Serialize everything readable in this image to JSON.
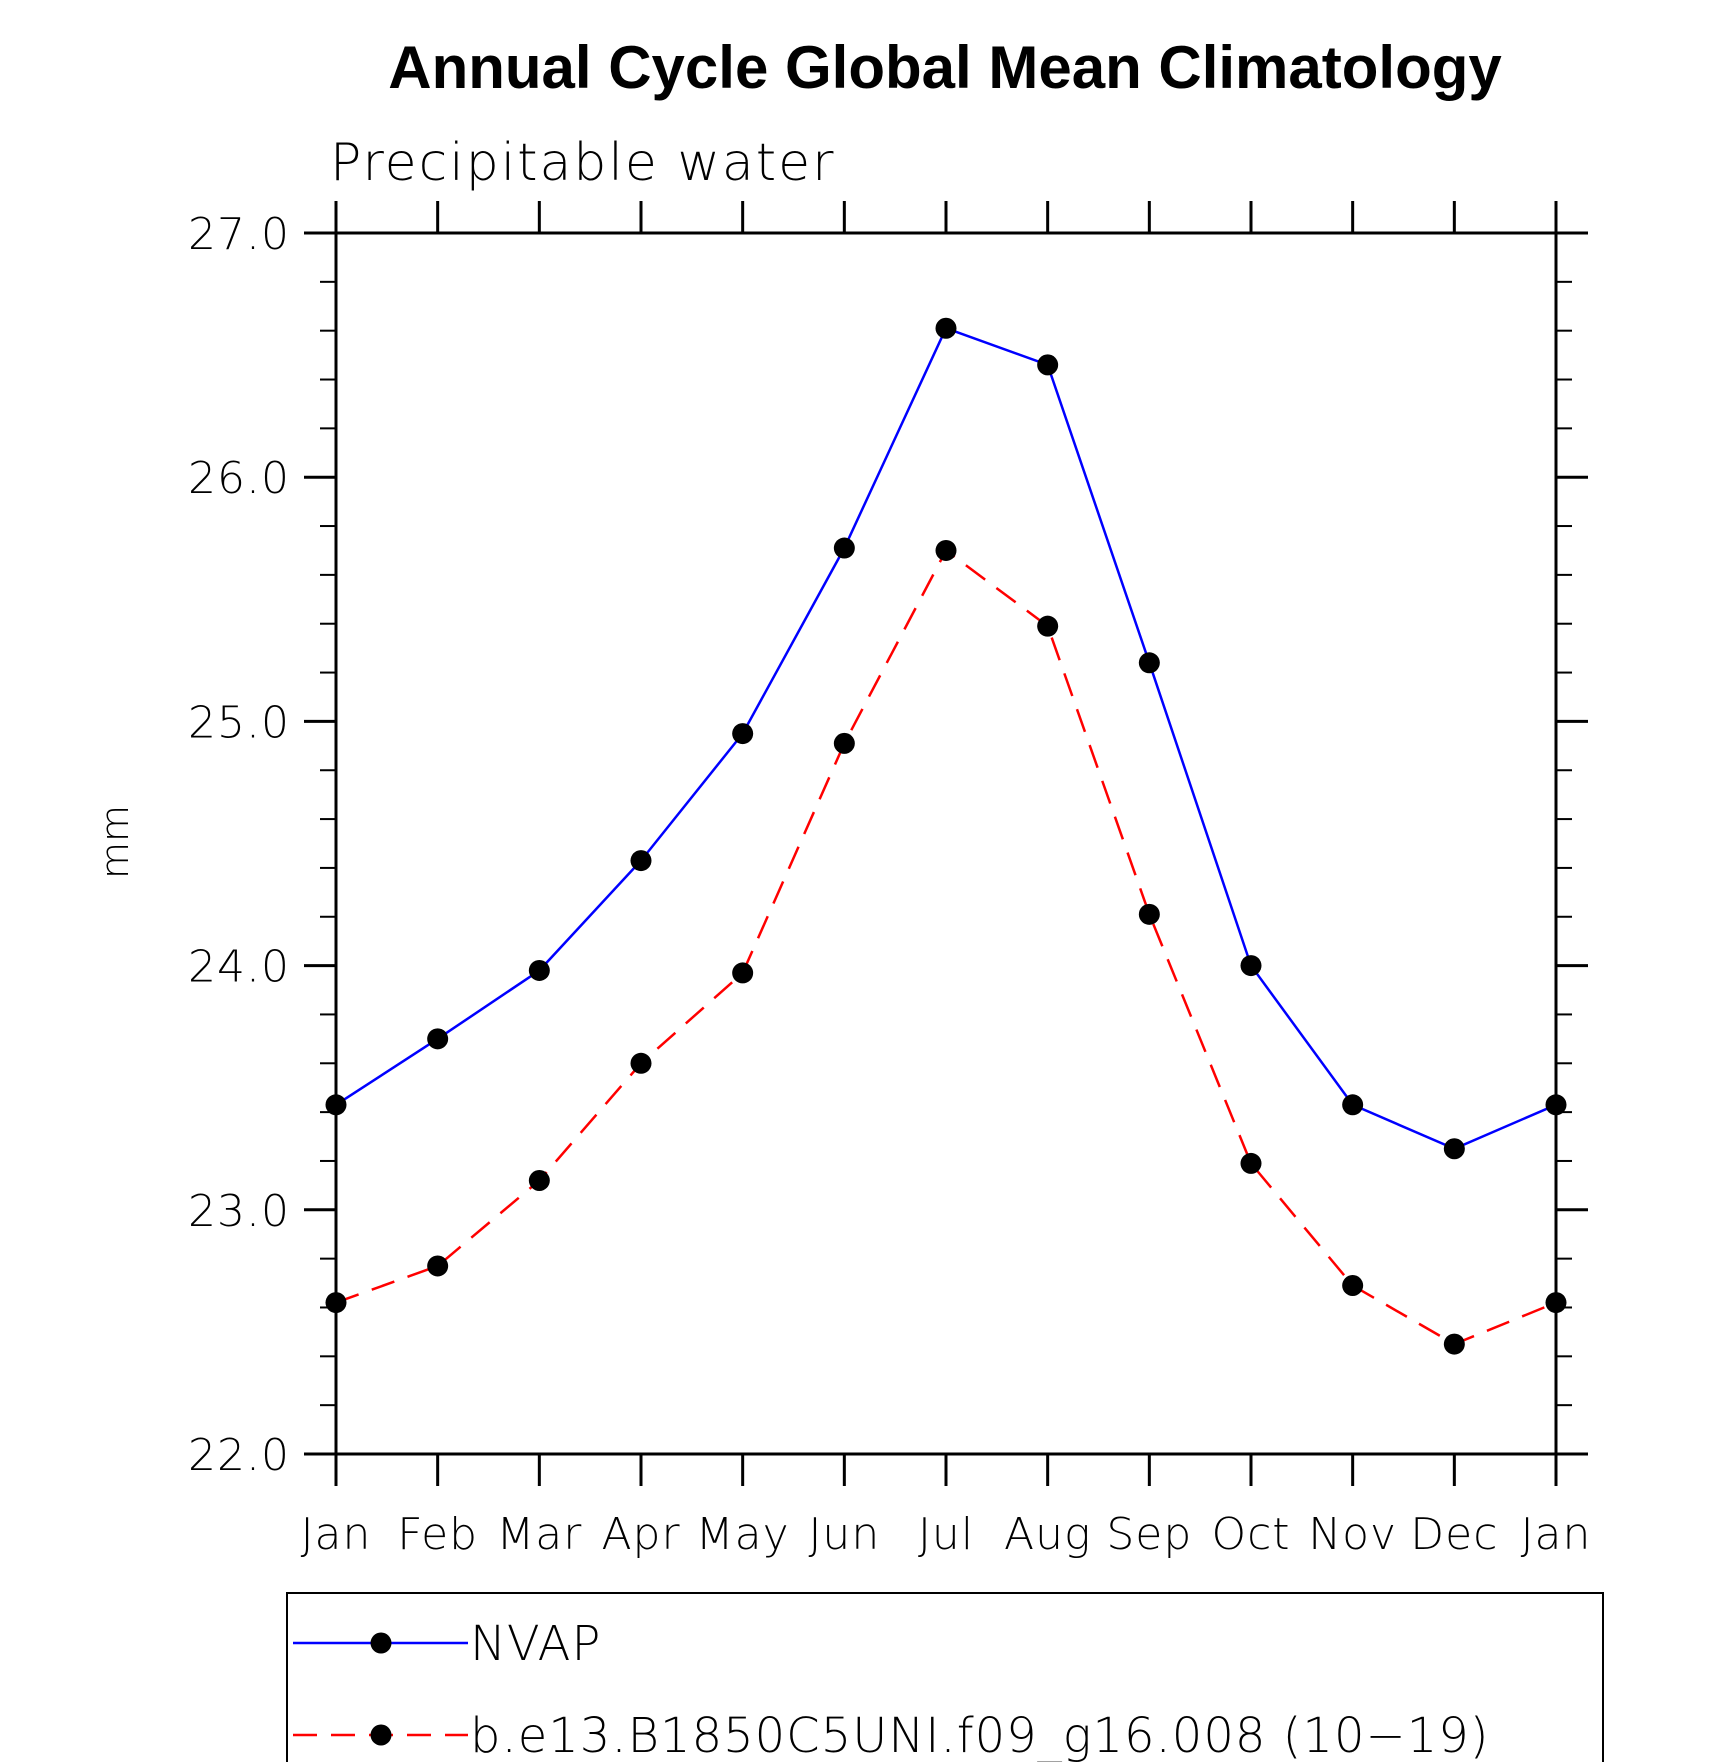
{
  "chart_data": {
    "type": "line",
    "title": "Annual Cycle Global Mean Climatology",
    "subtitle": "Precipitable water",
    "ylabel": "mm",
    "xlabel": "",
    "categories": [
      "Jan",
      "Feb",
      "Mar",
      "Apr",
      "May",
      "Jun",
      "Jul",
      "Aug",
      "Sep",
      "Oct",
      "Nov",
      "Dec",
      "Jan"
    ],
    "ylim": [
      22.0,
      27.0
    ],
    "yticks": [
      "22.0",
      "23.0",
      "24.0",
      "25.0",
      "26.0",
      "27.0"
    ],
    "yminor_step": 0.2,
    "grid": false,
    "legend_position": "bottom",
    "series": [
      {
        "name": "NVAP",
        "color": "#0000ff",
        "dash": "solid",
        "marker": "filled-circle",
        "values": [
          23.43,
          23.7,
          23.98,
          24.43,
          24.95,
          25.71,
          26.61,
          26.46,
          25.24,
          24.0,
          23.43,
          23.25,
          23.43
        ]
      },
      {
        "name": "b.e13.B1850C5UNI.f09_g16.008 (10−19)",
        "color": "#ff0000",
        "dash": "dashed",
        "marker": "filled-circle",
        "values": [
          22.62,
          22.77,
          23.12,
          23.6,
          23.97,
          24.91,
          25.7,
          25.39,
          24.21,
          23.19,
          22.69,
          22.45,
          22.62
        ]
      }
    ]
  }
}
